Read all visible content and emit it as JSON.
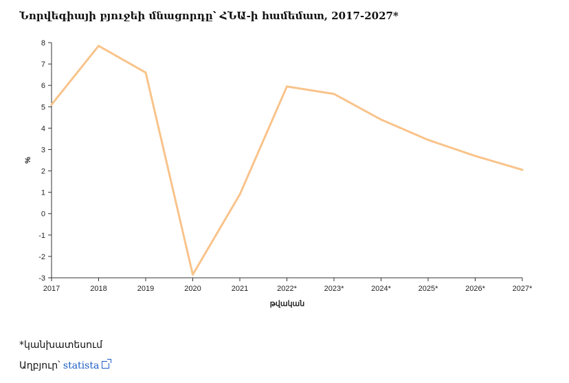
{
  "title": "Նորվեգիայի բյուջեի մնացորդը՝ ՀՆԱ-ի համեմատ, 2017-2027*",
  "footnote": "*կանխատեսում",
  "source_prefix": "Աղբյուր՝ ",
  "source_link": "statista",
  "chart_data": {
    "type": "line",
    "title": "Նորվեգիայի բյուջեի մնացորդը՝ ՀՆԱ-ի համեմատ, 2017-2027*",
    "xlabel": "թվական",
    "ylabel": "%",
    "categories": [
      "2017",
      "2018",
      "2019",
      "2020",
      "2021",
      "2022*",
      "2023*",
      "2024*",
      "2025*",
      "2026*",
      "2027*"
    ],
    "series": [
      {
        "values": [
          5.1,
          7.85,
          6.6,
          -2.85,
          0.9,
          5.95,
          5.6,
          4.4,
          3.45,
          2.7,
          2.05
        ]
      }
    ],
    "yticks": [
      "-3",
      "-2",
      "-1",
      "0",
      "1",
      "2",
      "3",
      "4",
      "5",
      "6",
      "7",
      "8"
    ],
    "ylim": [
      -3,
      8
    ],
    "grid": false,
    "line_color": "#f9c38a"
  }
}
